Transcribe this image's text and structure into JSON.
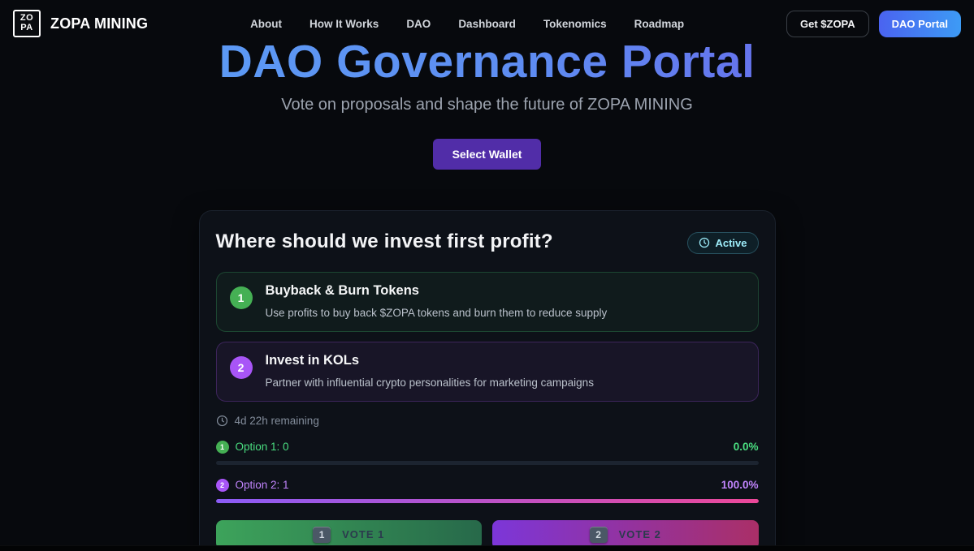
{
  "header": {
    "logo_line1": "ZO",
    "logo_line2": "PA",
    "brand": "ZOPA MINING",
    "nav": [
      {
        "label": "About"
      },
      {
        "label": "How It Works"
      },
      {
        "label": "DAO"
      },
      {
        "label": "Dashboard"
      },
      {
        "label": "Tokenomics"
      },
      {
        "label": "Roadmap"
      }
    ],
    "get_zopa_label": "Get $ZOPA",
    "dao_portal_label": "DAO Portal"
  },
  "hero": {
    "title": "DAO Governance Portal",
    "subtitle": "Vote on proposals and shape the future of ZOPA MINING",
    "select_wallet_label": "Select Wallet"
  },
  "proposal": {
    "title": "Where should we invest first profit?",
    "status_label": "Active",
    "time_remaining": "4d 22h remaining",
    "options": [
      {
        "number": "1",
        "title": "Buyback & Burn Tokens",
        "description": "Use profits to buy back $ZOPA tokens and burn them to reduce supply"
      },
      {
        "number": "2",
        "title": "Invest in KOLs",
        "description": "Partner with influential crypto personalities for marketing campaigns"
      }
    ],
    "results": [
      {
        "number": "1",
        "label": "Option 1: 0",
        "percent_label": "0.0%",
        "percent_value": 0
      },
      {
        "number": "2",
        "label": "Option 2: 1",
        "percent_label": "100.0%",
        "percent_value": 100
      }
    ],
    "vote_buttons": [
      {
        "key": "1",
        "label": "VOTE 1"
      },
      {
        "key": "2",
        "label": "VOTE 2"
      }
    ]
  },
  "colors": {
    "page_background": "#07090d",
    "title_gradient_start": "#5ba2f5",
    "title_gradient_end": "#6d5ce8",
    "wallet_button": "#512da8",
    "active_badge_text": "#9decf9",
    "option1_accent": "#45b054",
    "option2_accent": "#a855f7",
    "result1_text": "#4ade80",
    "result2_text": "#c084fc",
    "progress_gradient": [
      "#8b5cf6",
      "#ec4899"
    ],
    "vote1_gradient": [
      "#3da35b",
      "#27694a"
    ],
    "vote2_gradient": [
      "#7c36d9",
      "#aa2f67"
    ],
    "dao_portal_gradient": [
      "#4a63f0",
      "#3d9bf5"
    ]
  }
}
